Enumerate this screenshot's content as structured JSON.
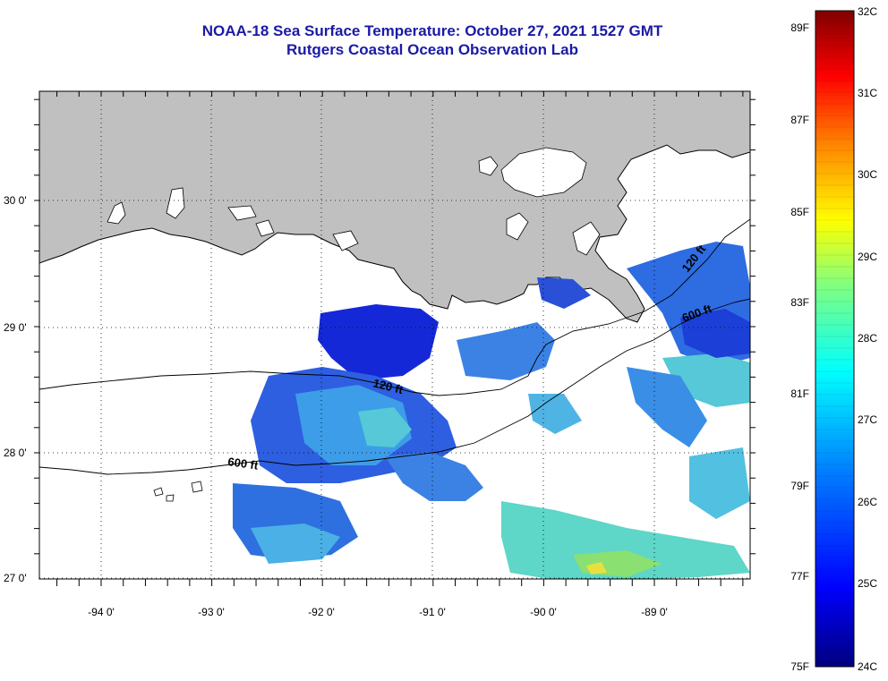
{
  "title": {
    "line1": "NOAA-18 Sea Surface Temperature:  October 27, 2021 1527 GMT",
    "line2": "Rutgers Coastal Ocean Observation Lab"
  },
  "map": {
    "lat_labels": [
      "30 0'",
      "29 0'",
      "28 0'",
      "27 0'"
    ],
    "lon_labels": [
      "-94 0'",
      "-93 0'",
      "-92 0'",
      "-91 0'",
      "-90 0'",
      "-89 0'"
    ],
    "contour_labels": [
      {
        "text": "120 ft",
        "isobath": "120 ft"
      },
      {
        "text": "120 ft",
        "isobath": "120 ft"
      },
      {
        "text": "600 ft",
        "isobath": "600 ft"
      },
      {
        "text": "600 ft",
        "isobath": "600 ft"
      }
    ],
    "land_color": "#c0c0c0",
    "cloud_color": "#ffffff"
  },
  "colorbar": {
    "fahrenheit_labels": [
      "89F",
      "87F",
      "85F",
      "83F",
      "81F",
      "79F",
      "77F",
      "75F"
    ],
    "celsius_labels": [
      "32C",
      "31C",
      "30C",
      "29C",
      "28C",
      "27C",
      "26C",
      "25C",
      "24C"
    ],
    "colors": [
      "#000080",
      "#0000ff",
      "#0080ff",
      "#00ffff",
      "#80ff80",
      "#ffff00",
      "#ff8000",
      "#ff0000",
      "#800000"
    ]
  }
}
